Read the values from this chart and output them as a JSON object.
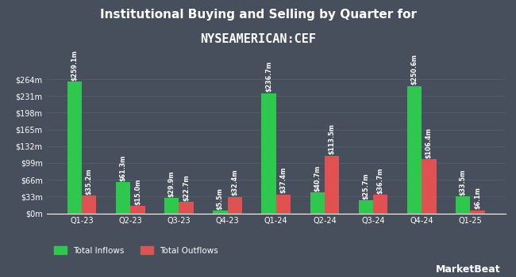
{
  "title_line1": "Institutional Buying and Selling by Quarter for",
  "title_line2": "NYSEAMERICAN:CEF",
  "quarters": [
    "Q1-23",
    "Q2-23",
    "Q3-23",
    "Q4-23",
    "Q1-24",
    "Q2-24",
    "Q3-24",
    "Q4-24",
    "Q1-25"
  ],
  "inflows": [
    259.1,
    61.3,
    29.9,
    5.5,
    236.7,
    40.7,
    25.7,
    250.6,
    33.5
  ],
  "outflows": [
    35.2,
    15.0,
    22.7,
    32.4,
    37.4,
    113.5,
    36.7,
    106.4,
    6.1
  ],
  "inflow_labels": [
    "$259.1m",
    "$61.3m",
    "$29.9m",
    "$5.5m",
    "$236.7m",
    "$40.7m",
    "$25.7m",
    "$250.6m",
    "$33.5m"
  ],
  "outflow_labels": [
    "$35.2m",
    "$15.0m",
    "$22.7m",
    "$32.4m",
    "$37.4m",
    "$113.5m",
    "$36.7m",
    "$106.4m",
    "$6.1m"
  ],
  "inflow_color": "#2dc84d",
  "outflow_color": "#e05252",
  "background_color": "#464f5b",
  "text_color": "#ffffff",
  "grid_color": "#525d6a",
  "ytick_labels": [
    "$0m",
    "$33m",
    "$66m",
    "$99m",
    "$132m",
    "$165m",
    "$198m",
    "$231m",
    "$264m"
  ],
  "ytick_values": [
    0,
    33,
    66,
    99,
    132,
    165,
    198,
    231,
    264
  ],
  "ylim": [
    0,
    300
  ],
  "bar_width": 0.3,
  "legend_labels": [
    "Total Inflows",
    "Total Outflows"
  ],
  "label_fontsize": 5.8,
  "tick_fontsize": 7.0,
  "title1_fontsize": 11,
  "title2_fontsize": 11
}
